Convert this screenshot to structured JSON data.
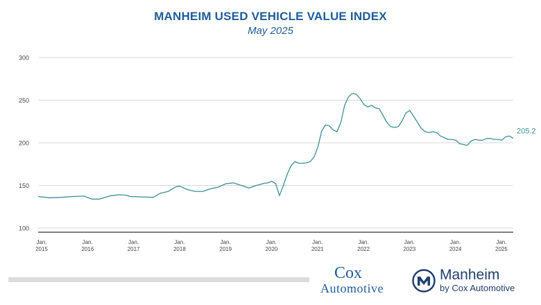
{
  "header": {
    "title": "MANHEIM USED VEHICLE VALUE INDEX",
    "subtitle": "May 2025"
  },
  "logos": {
    "cox_top": "Cox",
    "cox_bottom": "Automotive",
    "manheim": "Manheim",
    "manheim_tagline": "by Cox Automotive"
  },
  "colors": {
    "title": "#1f5c99",
    "line": "#3a8f96",
    "grid": "#d9d9d9",
    "axis": "#333333",
    "end_label": "#3a8f96"
  },
  "chart_data": {
    "type": "line",
    "title": "MANHEIM USED VEHICLE VALUE INDEX",
    "subtitle": "May 2025",
    "xlabel": "",
    "ylabel": "",
    "ylim": [
      100,
      300
    ],
    "yticks": [
      100,
      150,
      200,
      250,
      300
    ],
    "grid": true,
    "legend": "none",
    "x_start": "2015-01",
    "x_end": "2025-05",
    "x_ticks": [
      {
        "top": "Jan.",
        "bottom": "2015",
        "x": "2015-01"
      },
      {
        "top": "Jan.",
        "bottom": "2016",
        "x": "2016-01"
      },
      {
        "top": "Jan.",
        "bottom": "2017",
        "x": "2017-01"
      },
      {
        "top": "Jan.",
        "bottom": "2018",
        "x": "2018-01"
      },
      {
        "top": "Jan.",
        "bottom": "2019",
        "x": "2019-01"
      },
      {
        "top": "Jan.",
        "bottom": "2020",
        "x": "2020-01"
      },
      {
        "top": "Jan.",
        "bottom": "2021",
        "x": "2021-01"
      },
      {
        "top": "Jan.",
        "bottom": "2022",
        "x": "2022-01"
      },
      {
        "top": "Jan.",
        "bottom": "2023",
        "x": "2023-01"
      },
      {
        "top": "Jan.",
        "bottom": "2024",
        "x": "2024-01"
      },
      {
        "top": "Jan.",
        "bottom": "2025",
        "x": "2025-01"
      }
    ],
    "end_label": "205.2",
    "series": [
      {
        "values": [
          {
            "x": "2015-01",
            "y": 137
          },
          {
            "x": "2015-04",
            "y": 135.5
          },
          {
            "x": "2015-07",
            "y": 136
          },
          {
            "x": "2015-10",
            "y": 137
          },
          {
            "x": "2016-01",
            "y": 137.5
          },
          {
            "x": "2016-03",
            "y": 134
          },
          {
            "x": "2016-05",
            "y": 134
          },
          {
            "x": "2016-08",
            "y": 138
          },
          {
            "x": "2016-10",
            "y": 139
          },
          {
            "x": "2016-12",
            "y": 138.5
          },
          {
            "x": "2017-01",
            "y": 137
          },
          {
            "x": "2017-04",
            "y": 136.5
          },
          {
            "x": "2017-07",
            "y": 136
          },
          {
            "x": "2017-09",
            "y": 141
          },
          {
            "x": "2017-11",
            "y": 143
          },
          {
            "x": "2018-01",
            "y": 148.5
          },
          {
            "x": "2018-02",
            "y": 149
          },
          {
            "x": "2018-04",
            "y": 145
          },
          {
            "x": "2018-06",
            "y": 143
          },
          {
            "x": "2018-08",
            "y": 143
          },
          {
            "x": "2018-10",
            "y": 146
          },
          {
            "x": "2018-12",
            "y": 148
          },
          {
            "x": "2019-02",
            "y": 152
          },
          {
            "x": "2019-04",
            "y": 153
          },
          {
            "x": "2019-06",
            "y": 150
          },
          {
            "x": "2019-08",
            "y": 147
          },
          {
            "x": "2019-10",
            "y": 150
          },
          {
            "x": "2019-12",
            "y": 152.5
          },
          {
            "x": "2020-01",
            "y": 153
          },
          {
            "x": "2020-02",
            "y": 155
          },
          {
            "x": "2020-03",
            "y": 152
          },
          {
            "x": "2020-04",
            "y": 138
          },
          {
            "x": "2020-05",
            "y": 150
          },
          {
            "x": "2020-06",
            "y": 163
          },
          {
            "x": "2020-07",
            "y": 173
          },
          {
            "x": "2020-08",
            "y": 178
          },
          {
            "x": "2020-09",
            "y": 176
          },
          {
            "x": "2020-10",
            "y": 176
          },
          {
            "x": "2020-11",
            "y": 176.5
          },
          {
            "x": "2020-12",
            "y": 178
          },
          {
            "x": "2021-01",
            "y": 183
          },
          {
            "x": "2021-02",
            "y": 195
          },
          {
            "x": "2021-03",
            "y": 214
          },
          {
            "x": "2021-04",
            "y": 221
          },
          {
            "x": "2021-05",
            "y": 220
          },
          {
            "x": "2021-06",
            "y": 215
          },
          {
            "x": "2021-07",
            "y": 213
          },
          {
            "x": "2021-08",
            "y": 224
          },
          {
            "x": "2021-09",
            "y": 244
          },
          {
            "x": "2021-10",
            "y": 254
          },
          {
            "x": "2021-11",
            "y": 258
          },
          {
            "x": "2021-12",
            "y": 257
          },
          {
            "x": "2022-01",
            "y": 252
          },
          {
            "x": "2022-02",
            "y": 245
          },
          {
            "x": "2022-03",
            "y": 242
          },
          {
            "x": "2022-04",
            "y": 244
          },
          {
            "x": "2022-05",
            "y": 241
          },
          {
            "x": "2022-06",
            "y": 240
          },
          {
            "x": "2022-07",
            "y": 232
          },
          {
            "x": "2022-08",
            "y": 224
          },
          {
            "x": "2022-09",
            "y": 219
          },
          {
            "x": "2022-10",
            "y": 218
          },
          {
            "x": "2022-11",
            "y": 219
          },
          {
            "x": "2022-12",
            "y": 226
          },
          {
            "x": "2023-01",
            "y": 235
          },
          {
            "x": "2023-02",
            "y": 238
          },
          {
            "x": "2023-03",
            "y": 231
          },
          {
            "x": "2023-04",
            "y": 224
          },
          {
            "x": "2023-05",
            "y": 217
          },
          {
            "x": "2023-06",
            "y": 213
          },
          {
            "x": "2023-07",
            "y": 212
          },
          {
            "x": "2023-08",
            "y": 213
          },
          {
            "x": "2023-09",
            "y": 212
          },
          {
            "x": "2023-10",
            "y": 208
          },
          {
            "x": "2023-11",
            "y": 206
          },
          {
            "x": "2023-12",
            "y": 204
          },
          {
            "x": "2024-01",
            "y": 204
          },
          {
            "x": "2024-02",
            "y": 203
          },
          {
            "x": "2024-03",
            "y": 199
          },
          {
            "x": "2024-04",
            "y": 198
          },
          {
            "x": "2024-05",
            "y": 197
          },
          {
            "x": "2024-06",
            "y": 202
          },
          {
            "x": "2024-07",
            "y": 204
          },
          {
            "x": "2024-08",
            "y": 203
          },
          {
            "x": "2024-09",
            "y": 203
          },
          {
            "x": "2024-10",
            "y": 205
          },
          {
            "x": "2024-11",
            "y": 205
          },
          {
            "x": "2024-12",
            "y": 204
          },
          {
            "x": "2025-01",
            "y": 204
          },
          {
            "x": "2025-02",
            "y": 203
          },
          {
            "x": "2025-03",
            "y": 207
          },
          {
            "x": "2025-04",
            "y": 208
          },
          {
            "x": "2025-05",
            "y": 205.2
          }
        ]
      }
    ]
  }
}
